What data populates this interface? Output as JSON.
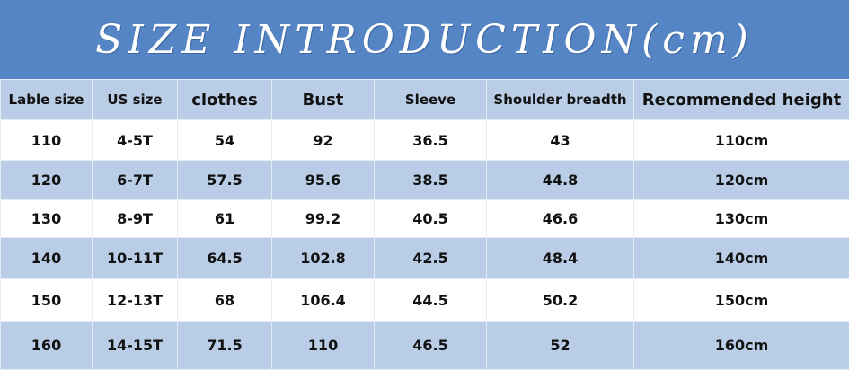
{
  "header": {
    "title": "SIZE INTRODUCTION(cm)"
  },
  "table": {
    "columns": [
      "Lable size",
      "US size",
      "clothes",
      "Bust",
      "Sleeve",
      "Shoulder breadth",
      "Recommended height"
    ],
    "rows": [
      [
        "110",
        "4-5T",
        "54",
        "92",
        "36.5",
        "43",
        "110cm"
      ],
      [
        "120",
        "6-7T",
        "57.5",
        "95.6",
        "38.5",
        "44.8",
        "120cm"
      ],
      [
        "130",
        "8-9T",
        "61",
        "99.2",
        "40.5",
        "46.6",
        "130cm"
      ],
      [
        "140",
        "10-11T",
        "64.5",
        "102.8",
        "42.5",
        "48.4",
        "140cm"
      ],
      [
        "150",
        "12-13T",
        "68",
        "106.4",
        "44.5",
        "50.2",
        "150cm"
      ],
      [
        "160",
        "14-15T",
        "71.5",
        "110",
        "46.5",
        "52",
        "160cm"
      ]
    ]
  }
}
